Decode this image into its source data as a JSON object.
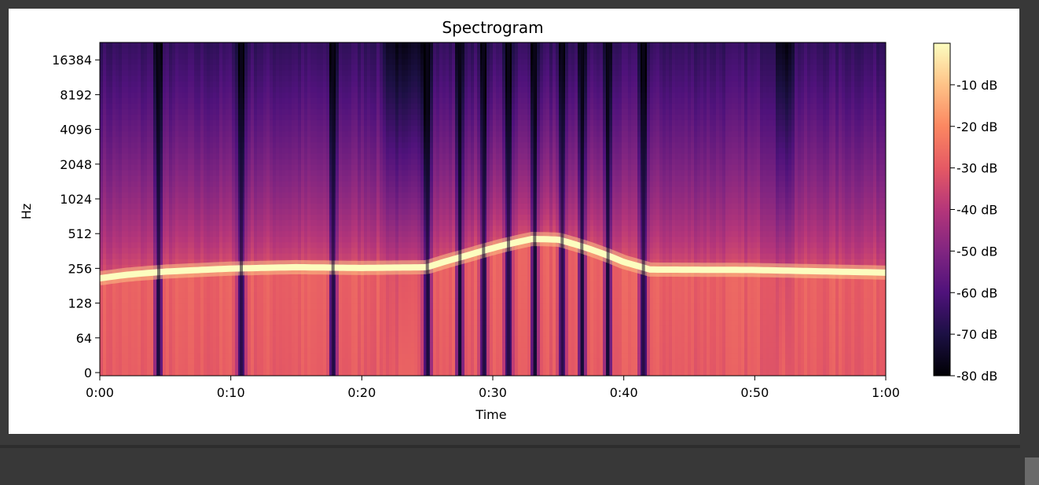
{
  "chart_data": {
    "type": "heatmap",
    "title": "Spectrogram",
    "xlabel": "Time",
    "ylabel": "Hz",
    "x_ticks": [
      "0:00",
      "0:10",
      "0:20",
      "0:30",
      "0:40",
      "0:50",
      "1:00"
    ],
    "x_tick_seconds": [
      0,
      10,
      20,
      30,
      40,
      50,
      60
    ],
    "xlim_seconds": [
      0,
      60
    ],
    "y_scale": "log2",
    "y_ticks": [
      "0",
      "64",
      "128",
      "256",
      "512",
      "1024",
      "2048",
      "4096",
      "8192",
      "16384"
    ],
    "colormap": "magma",
    "colorbar": {
      "ticks": [
        "-10 dB",
        "-20 dB",
        "-30 dB",
        "-40 dB",
        "-50 dB",
        "-60 dB",
        "-70 dB",
        "-80 dB"
      ],
      "tick_values": [
        -10,
        -20,
        -30,
        -40,
        -50,
        -60,
        -70,
        -80
      ],
      "range_db": [
        -80,
        0
      ]
    },
    "pitch_contour": {
      "time_seconds": [
        0,
        2,
        5,
        10,
        15,
        20,
        25,
        28,
        31,
        33,
        35,
        37,
        40,
        42,
        50,
        60
      ],
      "frequency_hz": [
        210,
        225,
        240,
        255,
        262,
        258,
        262,
        330,
        410,
        460,
        455,
        390,
        290,
        250,
        248,
        235
      ]
    },
    "gaps_seconds": [
      4.5,
      10.8,
      17.8,
      25.0,
      27.5,
      29.3,
      31.2,
      33.2,
      35.3,
      36.8,
      38.8,
      41.5
    ],
    "quiet_high_freq_regions_seconds": [
      [
        21.5,
        25.0
      ],
      [
        51.5,
        53.0
      ]
    ]
  }
}
